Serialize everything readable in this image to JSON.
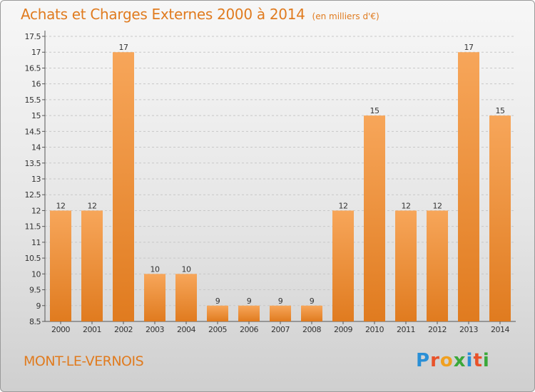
{
  "header": {
    "title": "Achats et Charges Externes 2000 à 2014",
    "subtitle": "(en milliers d'€)"
  },
  "commune": "MONT-LE-VERNOIS",
  "logo": {
    "text": "Proxiti",
    "letter_colors": [
      "#2a8fd6",
      "#e8522a",
      "#f0a020",
      "#3aa83a",
      "#2a8fd6",
      "#e8522a",
      "#3aa83a"
    ]
  },
  "colors": {
    "bar_top": "#f7a65a",
    "bar_bottom": "#e07b1f",
    "grid": "#c8c8c8",
    "accent": "#e07b1f"
  },
  "chart_data": {
    "type": "bar",
    "categories": [
      "2000",
      "2001",
      "2002",
      "2003",
      "2004",
      "2005",
      "2006",
      "2007",
      "2008",
      "2009",
      "2010",
      "2011",
      "2012",
      "2013",
      "2014"
    ],
    "values": [
      12,
      12,
      17,
      10,
      10,
      9,
      9,
      9,
      9,
      12,
      15,
      12,
      12,
      17,
      15
    ],
    "data_labels": [
      "12",
      "12",
      "17",
      "10",
      "10",
      "9",
      "9",
      "9",
      "9",
      "12",
      "15",
      "12",
      "12",
      "17",
      "15"
    ],
    "yticks": [
      "8.5",
      "9",
      "9.5",
      "10",
      "10.5",
      "11",
      "11.5",
      "12",
      "12.5",
      "13",
      "13.5",
      "14",
      "14.5",
      "15",
      "15.5",
      "16",
      "16.5",
      "17",
      "17.5"
    ],
    "ylim": [
      8.5,
      17.5
    ],
    "grid": "horizontal dashed",
    "legend": "none"
  }
}
